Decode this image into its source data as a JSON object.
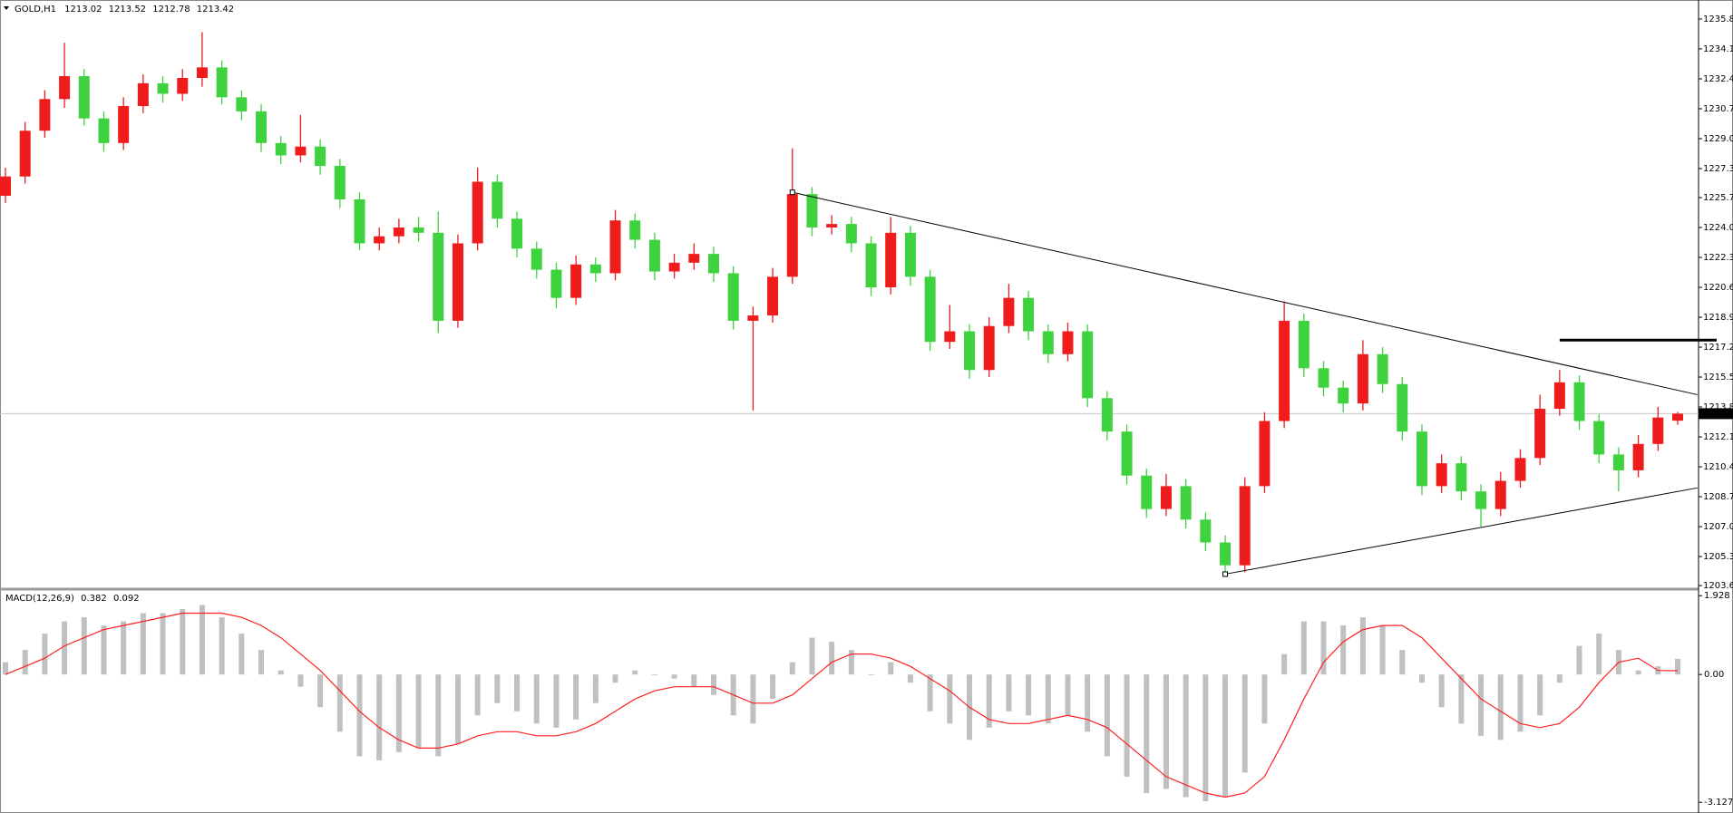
{
  "chart_data": {
    "type": "candlestick",
    "symbol": "GOLD,H1",
    "colors": {
      "up": "#ee1c1c",
      "down": "#3fd23f"
    },
    "candles": [
      [
        1225.8,
        1227.4,
        1225.4,
        1226.9
      ],
      [
        1226.9,
        1230.0,
        1226.5,
        1229.5
      ],
      [
        1229.5,
        1231.8,
        1229.1,
        1231.3
      ],
      [
        1231.3,
        1234.5,
        1230.8,
        1232.6
      ],
      [
        1232.6,
        1233.0,
        1229.8,
        1230.2
      ],
      [
        1230.2,
        1230.6,
        1228.3,
        1228.8
      ],
      [
        1228.8,
        1231.4,
        1228.4,
        1230.9
      ],
      [
        1230.9,
        1232.7,
        1230.5,
        1232.2
      ],
      [
        1232.2,
        1232.6,
        1231.1,
        1231.6
      ],
      [
        1231.6,
        1233.0,
        1231.2,
        1232.5
      ],
      [
        1232.5,
        1235.1,
        1232.0,
        1233.1
      ],
      [
        1233.1,
        1233.5,
        1231.0,
        1231.4
      ],
      [
        1231.4,
        1231.8,
        1230.1,
        1230.6
      ],
      [
        1230.6,
        1231.0,
        1228.3,
        1228.8
      ],
      [
        1228.8,
        1229.2,
        1227.6,
        1228.1
      ],
      [
        1228.1,
        1230.4,
        1227.7,
        1228.6
      ],
      [
        1228.6,
        1229.0,
        1227.0,
        1227.5
      ],
      [
        1227.5,
        1227.9,
        1225.1,
        1225.6
      ],
      [
        1225.6,
        1226.0,
        1222.7,
        1223.1
      ],
      [
        1223.1,
        1224.0,
        1222.7,
        1223.5
      ],
      [
        1223.5,
        1224.5,
        1223.1,
        1224.0
      ],
      [
        1224.0,
        1224.6,
        1223.2,
        1223.7
      ],
      [
        1223.7,
        1224.9,
        1218.0,
        1218.7
      ],
      [
        1218.7,
        1223.6,
        1218.3,
        1223.1
      ],
      [
        1223.1,
        1227.4,
        1222.7,
        1226.6
      ],
      [
        1226.6,
        1227.0,
        1224.0,
        1224.5
      ],
      [
        1224.5,
        1224.9,
        1222.3,
        1222.8
      ],
      [
        1222.8,
        1223.2,
        1221.1,
        1221.6
      ],
      [
        1221.6,
        1222.0,
        1219.4,
        1220.0
      ],
      [
        1220.0,
        1222.4,
        1219.6,
        1221.9
      ],
      [
        1221.9,
        1222.3,
        1220.9,
        1221.4
      ],
      [
        1221.4,
        1225.0,
        1221.0,
        1224.4
      ],
      [
        1224.4,
        1224.8,
        1222.8,
        1223.3
      ],
      [
        1223.3,
        1223.7,
        1221.0,
        1221.5
      ],
      [
        1221.5,
        1222.5,
        1221.1,
        1222.0
      ],
      [
        1222.0,
        1223.1,
        1221.6,
        1222.5
      ],
      [
        1222.5,
        1222.9,
        1220.9,
        1221.4
      ],
      [
        1221.4,
        1221.8,
        1218.2,
        1218.7
      ],
      [
        1218.7,
        1219.5,
        1213.6,
        1219.0
      ],
      [
        1219.0,
        1221.7,
        1218.6,
        1221.2
      ],
      [
        1221.2,
        1228.5,
        1220.8,
        1225.9
      ],
      [
        1225.9,
        1226.3,
        1223.5,
        1224.0
      ],
      [
        1224.0,
        1224.7,
        1223.6,
        1224.2
      ],
      [
        1224.2,
        1224.6,
        1222.6,
        1223.1
      ],
      [
        1223.1,
        1223.5,
        1220.1,
        1220.6
      ],
      [
        1220.6,
        1224.6,
        1220.2,
        1223.7
      ],
      [
        1223.7,
        1224.1,
        1220.7,
        1221.2
      ],
      [
        1221.2,
        1221.6,
        1217.0,
        1217.5
      ],
      [
        1217.5,
        1219.6,
        1217.1,
        1218.1
      ],
      [
        1218.1,
        1218.5,
        1215.4,
        1215.9
      ],
      [
        1215.9,
        1218.9,
        1215.5,
        1218.4
      ],
      [
        1218.4,
        1220.8,
        1218.0,
        1220.0
      ],
      [
        1220.0,
        1220.4,
        1217.6,
        1218.1
      ],
      [
        1218.1,
        1218.5,
        1216.3,
        1216.8
      ],
      [
        1216.8,
        1218.6,
        1216.4,
        1218.1
      ],
      [
        1218.1,
        1218.5,
        1213.8,
        1214.3
      ],
      [
        1214.3,
        1214.7,
        1211.9,
        1212.4
      ],
      [
        1212.4,
        1212.8,
        1209.4,
        1209.9
      ],
      [
        1209.9,
        1210.3,
        1207.5,
        1208.0
      ],
      [
        1208.0,
        1210.0,
        1207.6,
        1209.3
      ],
      [
        1209.3,
        1209.7,
        1206.9,
        1207.4
      ],
      [
        1207.4,
        1207.8,
        1205.6,
        1206.1
      ],
      [
        1206.1,
        1206.5,
        1204.3,
        1204.8
      ],
      [
        1204.8,
        1209.8,
        1204.4,
        1209.3
      ],
      [
        1209.3,
        1213.5,
        1208.9,
        1213.0
      ],
      [
        1213.0,
        1219.8,
        1212.6,
        1218.7
      ],
      [
        1218.7,
        1219.1,
        1215.5,
        1216.0
      ],
      [
        1216.0,
        1216.4,
        1214.4,
        1214.9
      ],
      [
        1214.9,
        1215.3,
        1213.5,
        1214.0
      ],
      [
        1214.0,
        1217.6,
        1213.6,
        1216.8
      ],
      [
        1216.8,
        1217.2,
        1214.6,
        1215.1
      ],
      [
        1215.1,
        1215.5,
        1211.9,
        1212.4
      ],
      [
        1212.4,
        1212.8,
        1208.8,
        1209.3
      ],
      [
        1209.3,
        1211.1,
        1208.9,
        1210.6
      ],
      [
        1210.6,
        1211.0,
        1208.5,
        1209.0
      ],
      [
        1209.0,
        1209.4,
        1207.0,
        1208.0
      ],
      [
        1208.0,
        1210.1,
        1207.6,
        1209.6
      ],
      [
        1209.6,
        1211.4,
        1209.2,
        1210.9
      ],
      [
        1210.9,
        1214.5,
        1210.5,
        1213.7
      ],
      [
        1213.7,
        1215.9,
        1213.3,
        1215.2
      ],
      [
        1215.2,
        1215.6,
        1212.5,
        1213.0
      ],
      [
        1213.0,
        1213.4,
        1210.6,
        1211.1
      ],
      [
        1211.1,
        1211.5,
        1209.0,
        1210.2
      ],
      [
        1210.2,
        1212.2,
        1209.8,
        1211.7
      ],
      [
        1211.7,
        1213.8,
        1211.3,
        1213.2
      ],
      [
        1213.02,
        1213.52,
        1212.78,
        1213.42
      ]
    ],
    "ylim": [
      1203.55,
      1236.93
    ],
    "yticks": [
      1235.85,
      1234.15,
      1232.45,
      1230.75,
      1229.05,
      1227.35,
      {
        "value": 1225.7,
        "label": "1225.70"
      },
      {
        "value": 1224.0,
        "label": "1224.00"
      },
      {
        "value": 1222.3,
        "label": "1222.30"
      },
      {
        "value": 1220.6,
        "label": "1220.60"
      },
      {
        "value": 1218.9,
        "label": "1218.90"
      },
      {
        "value": 1217.2,
        "label": "1217.20"
      },
      {
        "value": 1215.5,
        "label": "1215.50"
      },
      {
        "value": 1213.8,
        "label": "1213.80"
      },
      {
        "value": 1212.1,
        "label": "1212.10"
      },
      {
        "value": 1210.4,
        "label": "1210.40"
      },
      {
        "value": 1208.7,
        "label": "1208.70"
      },
      {
        "value": 1207.0,
        "label": "1207.00"
      },
      {
        "value": 1205.3,
        "label": "1205.30"
      },
      1203.65
    ],
    "trendlines": [
      {
        "from": [
          40,
          1226.0
        ],
        "to": [
          86,
          1214.5
        ]
      },
      {
        "from": [
          62,
          1204.3
        ],
        "to": [
          86,
          1209.2
        ]
      }
    ],
    "hline": {
      "price": 1217.6,
      "from": 79
    },
    "macd": {
      "label": "MACD(12,26,9)",
      "hist_color": "#c0c0c0",
      "signal_color": "#ff2020",
      "histogram": [
        0.3,
        0.6,
        1.0,
        1.3,
        1.4,
        1.2,
        1.3,
        1.5,
        1.5,
        1.6,
        1.7,
        1.4,
        1.0,
        0.6,
        0.1,
        -0.3,
        -0.8,
        -1.4,
        -2.0,
        -2.1,
        -1.9,
        -1.8,
        -2.0,
        -1.7,
        -1.0,
        -0.7,
        -0.9,
        -1.2,
        -1.3,
        -1.1,
        -0.7,
        -0.2,
        0.1,
        0.0,
        -0.1,
        -0.3,
        -0.5,
        -1.0,
        -1.2,
        -0.6,
        0.3,
        0.9,
        0.8,
        0.6,
        0.0,
        0.3,
        -0.2,
        -0.9,
        -1.2,
        -1.6,
        -1.3,
        -0.9,
        -1.0,
        -1.2,
        -1.0,
        -1.4,
        -2.0,
        -2.5,
        -2.9,
        -2.8,
        -3.0,
        -3.1,
        -3.0,
        -2.4,
        -1.2,
        0.5,
        1.3,
        1.3,
        1.2,
        1.4,
        1.2,
        0.6,
        -0.2,
        -0.8,
        -1.2,
        -1.5,
        -1.6,
        -1.4,
        -1.0,
        -0.2,
        0.7,
        1.0,
        0.6,
        0.1,
        0.2,
        0.382
      ],
      "signal": [
        0.0,
        0.2,
        0.4,
        0.7,
        0.9,
        1.1,
        1.2,
        1.3,
        1.4,
        1.5,
        1.5,
        1.5,
        1.4,
        1.2,
        0.9,
        0.5,
        0.1,
        -0.4,
        -0.9,
        -1.3,
        -1.6,
        -1.8,
        -1.8,
        -1.7,
        -1.5,
        -1.4,
        -1.4,
        -1.5,
        -1.5,
        -1.4,
        -1.2,
        -0.9,
        -0.6,
        -0.4,
        -0.3,
        -0.3,
        -0.3,
        -0.5,
        -0.7,
        -0.7,
        -0.5,
        -0.1,
        0.3,
        0.5,
        0.5,
        0.4,
        0.2,
        -0.1,
        -0.4,
        -0.8,
        -1.1,
        -1.2,
        -1.2,
        -1.1,
        -1.0,
        -1.1,
        -1.3,
        -1.7,
        -2.1,
        -2.5,
        -2.7,
        -2.9,
        -3.0,
        -2.9,
        -2.5,
        -1.6,
        -0.6,
        0.3,
        0.8,
        1.1,
        1.2,
        1.2,
        0.9,
        0.4,
        -0.1,
        -0.6,
        -0.9,
        -1.2,
        -1.3,
        -1.2,
        -0.8,
        -0.2,
        0.3,
        0.4,
        0.1,
        0.092
      ],
      "ylim": [
        -3.3,
        2.0
      ],
      "yticks": [
        1.928,
        {
          "value": 0,
          "label": "0.00"
        },
        -3.127
      ]
    }
  }
}
